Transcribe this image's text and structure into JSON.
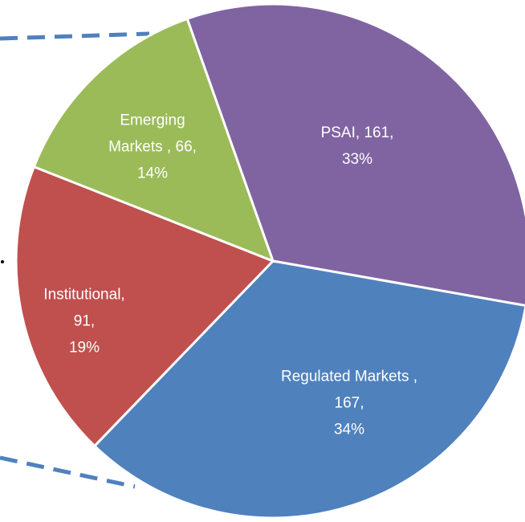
{
  "chart_data": {
    "type": "pie",
    "categories": [
      "PSAI",
      "Regulated Markets",
      "Institutional",
      "Emerging Markets"
    ],
    "values": [
      161,
      167,
      91,
      66
    ],
    "percentages": [
      33,
      34,
      19,
      14
    ],
    "percentage_labels": [
      "33%",
      "34%",
      "19%",
      "14%"
    ],
    "colors": [
      "#8064a2",
      "#4f81bd",
      "#c0504d",
      "#9bbb59"
    ]
  }
}
